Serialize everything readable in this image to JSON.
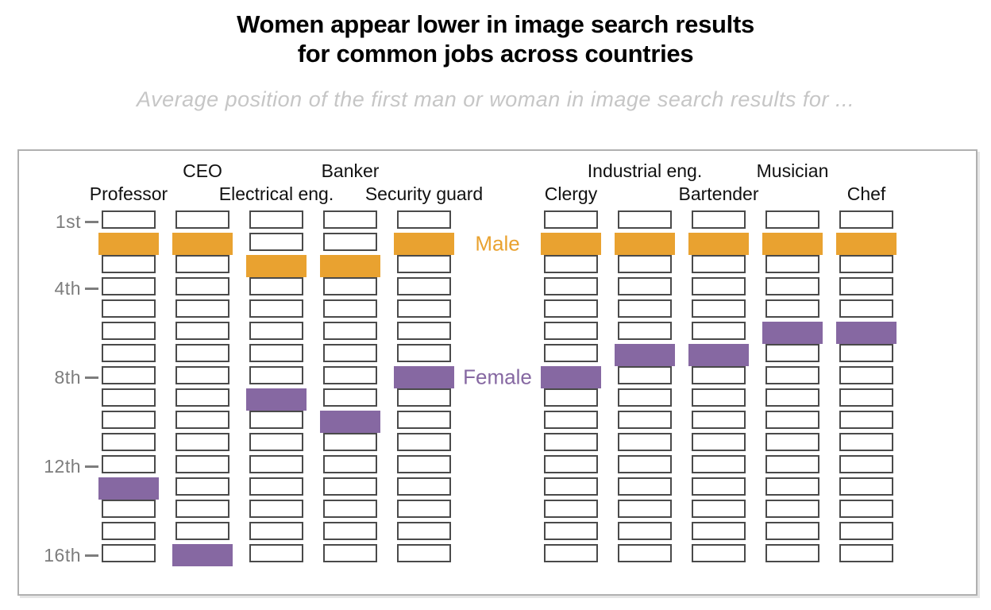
{
  "title": {
    "line1": "Women appear lower in image search results",
    "line2": "for common jobs across countries"
  },
  "subtitle": "Average position of the first man or woman in image search results for ...",
  "legend": {
    "male": "Male",
    "female": "Female"
  },
  "colors": {
    "male_fill": "#E9A230",
    "female_fill": "#8668A2",
    "empty_box_border": "#4A4A4A",
    "axis_text": "#7D7D7D",
    "panel_border": "#B0B0B0",
    "title_text": "#000000",
    "subtitle_text": "#C6C6C6",
    "job_label_text": "#111111"
  },
  "chart_data": {
    "type": "heatmap",
    "description": "Each column is a job with 16 stacked slots for image-search result ranks, 1st at top to 16th at bottom. In each column one slot is filled orange (average rank of first man) and one purple (average rank of first woman).",
    "rows": 16,
    "y_axis_unit": "rank position",
    "y_ticks": [
      {
        "label": "1st",
        "position": 1
      },
      {
        "label": "4th",
        "position": 4
      },
      {
        "label": "8th",
        "position": 8
      },
      {
        "label": "12th",
        "position": 12
      },
      {
        "label": "16th",
        "position": 16
      }
    ],
    "categories": [
      "Professor",
      "CEO",
      "Electrical eng.",
      "Banker",
      "Security guard",
      "Clergy",
      "Industrial eng.",
      "Bartender",
      "Musician",
      "Chef"
    ],
    "label_tier": [
      "lower",
      "upper",
      "lower",
      "upper",
      "lower",
      "lower",
      "upper",
      "lower",
      "upper",
      "lower"
    ],
    "column_group": [
      1,
      1,
      1,
      1,
      1,
      2,
      2,
      2,
      2,
      2
    ],
    "series": [
      {
        "name": "Male",
        "color": "#E9A230",
        "values": [
          2,
          2,
          3,
          3,
          2,
          2,
          2,
          2,
          2,
          2
        ]
      },
      {
        "name": "Female",
        "color": "#8668A2",
        "values": [
          13,
          16,
          9,
          10,
          8,
          8,
          7,
          7,
          6,
          6
        ]
      }
    ],
    "legend_position": "between column groups, aligned with male row 2 and female row 8 of adjacent columns",
    "grid": "off"
  }
}
